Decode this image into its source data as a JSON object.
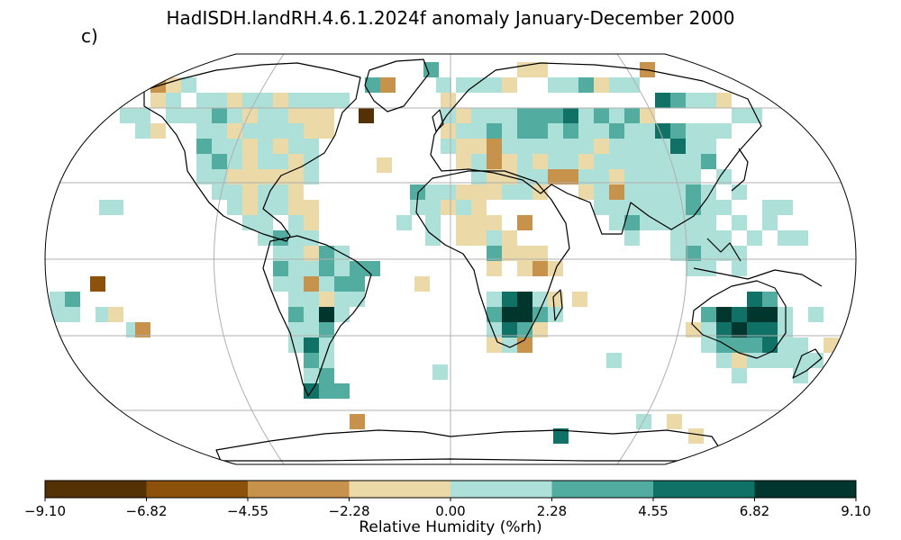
{
  "title": "HadISDH.landRH.4.6.1.2024f anomaly January-December 2000",
  "panel_label": "c)",
  "colorbar": {
    "label": "Relative Humidity (%rh)",
    "ticks": [
      "−9.10",
      "−6.82",
      "−4.55",
      "−2.28",
      "0.00",
      "2.28",
      "4.55",
      "6.82",
      "9.10"
    ],
    "colors": [
      "#543005",
      "#8c510a",
      "#c7924b",
      "#ecd9a8",
      "#ade0d9",
      "#52ada0",
      "#107267",
      "#00362d"
    ]
  },
  "map": {
    "projection": "Robinson",
    "variable": "Relative humidity anomaly",
    "period": "January-December 2000"
  }
}
